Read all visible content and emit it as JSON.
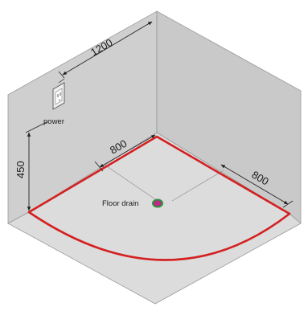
{
  "dimensions": {
    "back_wall_width": "1200",
    "height": "450",
    "left_depth": "800",
    "right_depth": "800"
  },
  "labels": {
    "power": "power",
    "floor_drain": "Floor drain"
  },
  "colors": {
    "wall": "#cfcfcf",
    "floor": "#dcdcdc",
    "outline": "#9a9a9a",
    "base_outline": "#d42020",
    "dimension_line": "#222222",
    "drain_outer": "#2f8f3a",
    "drain_inner": "#c2268a"
  },
  "icons": {
    "power_socket": "power-socket-icon",
    "floor_drain": "floor-drain-icon"
  }
}
